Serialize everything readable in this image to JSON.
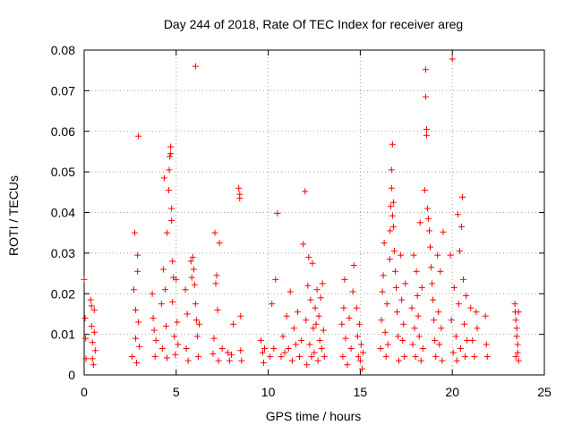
{
  "chart_data": {
    "type": "scatter",
    "title": "Day 244 of 2018, Rate Of TEC Index for receiver areg",
    "xlabel": "GPS time / hours",
    "ylabel": "ROTI / TECUs",
    "xlim": [
      0,
      25
    ],
    "ylim": [
      0,
      0.08
    ],
    "x_ticks": [
      0,
      5,
      10,
      15,
      20,
      25
    ],
    "y_ticks": [
      0,
      0.01,
      0.02,
      0.03,
      0.04,
      0.05,
      0.06,
      0.07,
      0.08
    ],
    "x_tick_labels": [
      "0",
      "5",
      "10",
      "15",
      "20",
      "25"
    ],
    "y_tick_labels": [
      "0",
      "0.01",
      "0.02",
      "0.03",
      "0.04",
      "0.05",
      "0.06",
      "0.07",
      "0.08"
    ],
    "grid": true,
    "marker": "+",
    "color": "#ff0000",
    "series": [
      {
        "name": "ROTI",
        "points": [
          [
            0.0,
            0.0235
          ],
          [
            0.05,
            0.014
          ],
          [
            0.08,
            0.009
          ],
          [
            0.1,
            0.004
          ],
          [
            0.35,
            0.0185
          ],
          [
            0.4,
            0.017
          ],
          [
            0.4,
            0.012
          ],
          [
            0.45,
            0.008
          ],
          [
            0.45,
            0.004
          ],
          [
            0.5,
            0.0025
          ],
          [
            0.55,
            0.016
          ],
          [
            0.55,
            0.0105
          ],
          [
            0.6,
            0.006
          ],
          [
            2.6,
            0.0045
          ],
          [
            2.7,
            0.021
          ],
          [
            2.75,
            0.035
          ],
          [
            2.8,
            0.016
          ],
          [
            2.8,
            0.009
          ],
          [
            2.85,
            0.003
          ],
          [
            2.9,
            0.0295
          ],
          [
            2.9,
            0.0255
          ],
          [
            2.95,
            0.013
          ],
          [
            3.0,
            0.007
          ],
          [
            2.95,
            0.0588
          ],
          [
            3.7,
            0.02
          ],
          [
            3.75,
            0.014
          ],
          [
            3.8,
            0.011
          ],
          [
            3.85,
            0.0045
          ],
          [
            3.9,
            0.0085
          ],
          [
            4.2,
            0.0175
          ],
          [
            4.25,
            0.0065
          ],
          [
            4.3,
            0.026
          ],
          [
            4.35,
            0.0485
          ],
          [
            4.4,
            0.021
          ],
          [
            4.45,
            0.012
          ],
          [
            4.5,
            0.035
          ],
          [
            4.5,
            0.0042
          ],
          [
            4.6,
            0.0455
          ],
          [
            4.62,
            0.0505
          ],
          [
            4.65,
            0.0538
          ],
          [
            4.7,
            0.0562
          ],
          [
            4.7,
            0.0545
          ],
          [
            4.75,
            0.041
          ],
          [
            4.75,
            0.038
          ],
          [
            4.8,
            0.028
          ],
          [
            4.8,
            0.018
          ],
          [
            4.85,
            0.024
          ],
          [
            4.9,
            0.0095
          ],
          [
            4.95,
            0.005
          ],
          [
            5.0,
            0.0235
          ],
          [
            5.05,
            0.013
          ],
          [
            5.1,
            0.0075
          ],
          [
            5.5,
            0.021
          ],
          [
            5.55,
            0.0065
          ],
          [
            5.6,
            0.015
          ],
          [
            5.65,
            0.0035
          ],
          [
            5.8,
            0.028
          ],
          [
            5.85,
            0.024
          ],
          [
            5.9,
            0.029
          ],
          [
            5.95,
            0.026
          ],
          [
            6.0,
            0.0222
          ],
          [
            6.05,
            0.0175
          ],
          [
            6.1,
            0.0135
          ],
          [
            6.15,
            0.0095
          ],
          [
            6.2,
            0.0045
          ],
          [
            6.25,
            0.0125
          ],
          [
            6.05,
            0.076
          ],
          [
            7.0,
            0.0052
          ],
          [
            7.05,
            0.009
          ],
          [
            7.1,
            0.035
          ],
          [
            7.15,
            0.0225
          ],
          [
            7.2,
            0.0245
          ],
          [
            7.25,
            0.016
          ],
          [
            7.3,
            0.0035
          ],
          [
            7.35,
            0.0325
          ],
          [
            7.5,
            0.0065
          ],
          [
            7.8,
            0.0055
          ],
          [
            7.9,
            0.0035
          ],
          [
            8.0,
            0.005
          ],
          [
            8.1,
            0.0125
          ],
          [
            8.4,
            0.046
          ],
          [
            8.45,
            0.0445
          ],
          [
            8.45,
            0.0435
          ],
          [
            8.5,
            0.0145
          ],
          [
            8.5,
            0.006
          ],
          [
            8.55,
            0.0035
          ],
          [
            9.6,
            0.0085
          ],
          [
            9.7,
            0.0055
          ],
          [
            9.75,
            0.003
          ],
          [
            9.8,
            0.0065
          ],
          [
            10.1,
            0.0045
          ],
          [
            10.2,
            0.0175
          ],
          [
            10.3,
            0.0065
          ],
          [
            10.4,
            0.0235
          ],
          [
            10.5,
            0.0398
          ],
          [
            10.7,
            0.0045
          ],
          [
            10.8,
            0.0095
          ],
          [
            10.9,
            0.0055
          ],
          [
            11.0,
            0.0145
          ],
          [
            11.1,
            0.0065
          ],
          [
            11.2,
            0.0205
          ],
          [
            11.3,
            0.0035
          ],
          [
            11.4,
            0.0115
          ],
          [
            11.5,
            0.0075
          ],
          [
            11.6,
            0.0155
          ],
          [
            11.7,
            0.0045
          ],
          [
            11.8,
            0.0085
          ],
          [
            11.9,
            0.0322
          ],
          [
            12.0,
            0.0452
          ],
          [
            12.05,
            0.0135
          ],
          [
            12.1,
            0.0025
          ],
          [
            12.15,
            0.022
          ],
          [
            12.2,
            0.029
          ],
          [
            12.25,
            0.0075
          ],
          [
            12.3,
            0.0185
          ],
          [
            12.35,
            0.0045
          ],
          [
            12.4,
            0.0275
          ],
          [
            12.45,
            0.0115
          ],
          [
            12.5,
            0.0055
          ],
          [
            12.55,
            0.0165
          ],
          [
            12.6,
            0.0125
          ],
          [
            12.65,
            0.021
          ],
          [
            12.7,
            0.0035
          ],
          [
            12.75,
            0.0145
          ],
          [
            12.8,
            0.0085
          ],
          [
            12.85,
            0.019
          ],
          [
            12.9,
            0.0065
          ],
          [
            12.95,
            0.0225
          ],
          [
            13.0,
            0.011
          ],
          [
            13.05,
            0.0045
          ],
          [
            14.0,
            0.0125
          ],
          [
            14.05,
            0.0045
          ],
          [
            14.1,
            0.0165
          ],
          [
            14.15,
            0.0235
          ],
          [
            14.2,
            0.009
          ],
          [
            14.3,
            0.0025
          ],
          [
            14.4,
            0.014
          ],
          [
            14.5,
            0.0065
          ],
          [
            14.6,
            0.0205
          ],
          [
            14.65,
            0.027
          ],
          [
            14.8,
            0.0165
          ],
          [
            14.85,
            0.0095
          ],
          [
            14.9,
            0.0045
          ],
          [
            14.95,
            0.0125
          ],
          [
            15.0,
            0.0035
          ],
          [
            15.05,
            0.0075
          ],
          [
            15.1,
            0.0015
          ],
          [
            15.15,
            0.0055
          ],
          [
            16.1,
            0.0065
          ],
          [
            16.15,
            0.0135
          ],
          [
            16.2,
            0.0205
          ],
          [
            16.25,
            0.0245
          ],
          [
            16.3,
            0.0325
          ],
          [
            16.35,
            0.0105
          ],
          [
            16.4,
            0.0045
          ],
          [
            16.45,
            0.0175
          ],
          [
            16.5,
            0.0075
          ],
          [
            16.6,
            0.0285
          ],
          [
            16.62,
            0.0355
          ],
          [
            16.65,
            0.0415
          ],
          [
            16.7,
            0.046
          ],
          [
            16.7,
            0.0505
          ],
          [
            16.75,
            0.0568
          ],
          [
            16.75,
            0.0392
          ],
          [
            16.8,
            0.0365
          ],
          [
            16.8,
            0.0425
          ],
          [
            16.85,
            0.0305
          ],
          [
            16.9,
            0.0255
          ],
          [
            16.95,
            0.0215
          ],
          [
            17.0,
            0.0155
          ],
          [
            17.05,
            0.0095
          ],
          [
            17.1,
            0.0035
          ],
          [
            17.2,
            0.0295
          ],
          [
            17.25,
            0.0185
          ],
          [
            17.3,
            0.0085
          ],
          [
            17.35,
            0.0125
          ],
          [
            17.4,
            0.0045
          ],
          [
            17.45,
            0.0225
          ],
          [
            17.8,
            0.0165
          ],
          [
            17.85,
            0.0075
          ],
          [
            17.9,
            0.0295
          ],
          [
            17.95,
            0.0115
          ],
          [
            18.0,
            0.0045
          ],
          [
            18.05,
            0.0255
          ],
          [
            18.1,
            0.0195
          ],
          [
            18.15,
            0.0145
          ],
          [
            18.2,
            0.0095
          ],
          [
            18.25,
            0.0375
          ],
          [
            18.3,
            0.0035
          ],
          [
            18.35,
            0.0215
          ],
          [
            18.4,
            0.0065
          ],
          [
            18.5,
            0.0455
          ],
          [
            18.55,
            0.0752
          ],
          [
            18.55,
            0.0685
          ],
          [
            18.6,
            0.0605
          ],
          [
            18.6,
            0.059
          ],
          [
            18.65,
            0.041
          ],
          [
            18.7,
            0.0385
          ],
          [
            18.75,
            0.0355
          ],
          [
            18.8,
            0.0315
          ],
          [
            18.85,
            0.0265
          ],
          [
            18.9,
            0.0225
          ],
          [
            18.95,
            0.0185
          ],
          [
            19.0,
            0.0135
          ],
          [
            19.05,
            0.0085
          ],
          [
            19.1,
            0.0045
          ],
          [
            19.2,
            0.0295
          ],
          [
            19.25,
            0.0155
          ],
          [
            19.3,
            0.0075
          ],
          [
            19.35,
            0.0255
          ],
          [
            19.4,
            0.0115
          ],
          [
            19.45,
            0.0035
          ],
          [
            19.5,
            0.0352
          ],
          [
            19.9,
            0.0295
          ],
          [
            19.95,
            0.0135
          ],
          [
            20.0,
            0.0778
          ],
          [
            20.05,
            0.0055
          ],
          [
            20.1,
            0.0215
          ],
          [
            20.2,
            0.0095
          ],
          [
            20.25,
            0.0035
          ],
          [
            20.3,
            0.0395
          ],
          [
            20.35,
            0.0175
          ],
          [
            20.4,
            0.0305
          ],
          [
            20.45,
            0.0065
          ],
          [
            20.5,
            0.0365
          ],
          [
            20.55,
            0.0438
          ],
          [
            20.6,
            0.0235
          ],
          [
            20.65,
            0.0125
          ],
          [
            20.7,
            0.0045
          ],
          [
            20.75,
            0.0195
          ],
          [
            20.8,
            0.0085
          ],
          [
            21.0,
            0.0165
          ],
          [
            21.1,
            0.0085
          ],
          [
            21.2,
            0.0045
          ],
          [
            21.3,
            0.0155
          ],
          [
            21.35,
            0.0115
          ],
          [
            21.8,
            0.0145
          ],
          [
            21.85,
            0.0075
          ],
          [
            21.9,
            0.0045
          ],
          [
            23.4,
            0.0175
          ],
          [
            23.42,
            0.0155
          ],
          [
            23.45,
            0.0135
          ],
          [
            23.5,
            0.0115
          ],
          [
            23.5,
            0.0095
          ],
          [
            23.55,
            0.0075
          ],
          [
            23.55,
            0.0055
          ],
          [
            23.6,
            0.0035
          ],
          [
            23.6,
            0.0155
          ],
          [
            23.45,
            0.0045
          ]
        ]
      }
    ]
  }
}
